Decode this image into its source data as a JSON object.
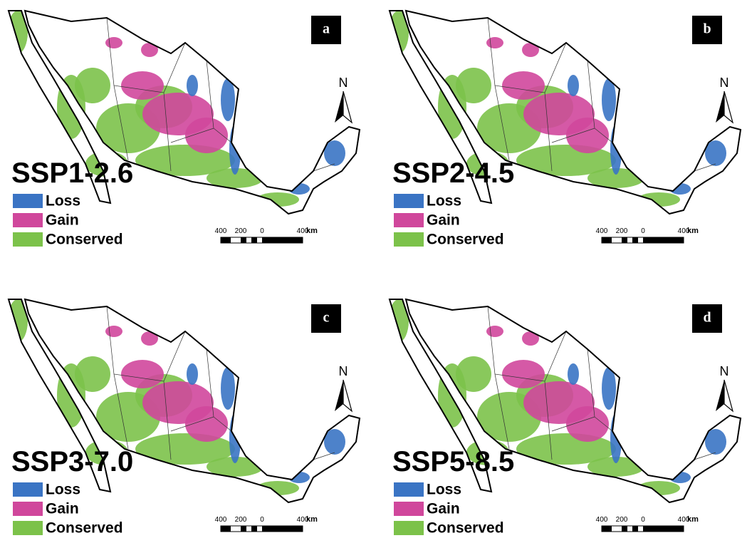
{
  "panels": [
    {
      "label": "a",
      "scenario": "SSP1-2.6",
      "legend": [
        "Loss",
        "Gain",
        "Conserved"
      ],
      "scale_labels": [
        "400",
        "200",
        "0",
        "400"
      ],
      "scale_unit": "km",
      "north": "N"
    },
    {
      "label": "b",
      "scenario": "SSP2-4.5",
      "legend": [
        "Loss",
        "Gain",
        "Conserved"
      ],
      "scale_labels": [
        "400",
        "200",
        "0",
        "400"
      ],
      "scale_unit": "km",
      "north": "N"
    },
    {
      "label": "c",
      "scenario": "SSP3-7.0",
      "legend": [
        "Loss",
        "Gain",
        "Conserved"
      ],
      "scale_labels": [
        "400",
        "200",
        "0",
        "400"
      ],
      "scale_unit": "km",
      "north": "N"
    },
    {
      "label": "d",
      "scenario": "SSP5-8.5",
      "legend": [
        "Loss",
        "Gain",
        "Conserved"
      ],
      "scale_labels": [
        "400",
        "200",
        "0",
        "400"
      ],
      "scale_unit": "km",
      "north": "N"
    }
  ]
}
